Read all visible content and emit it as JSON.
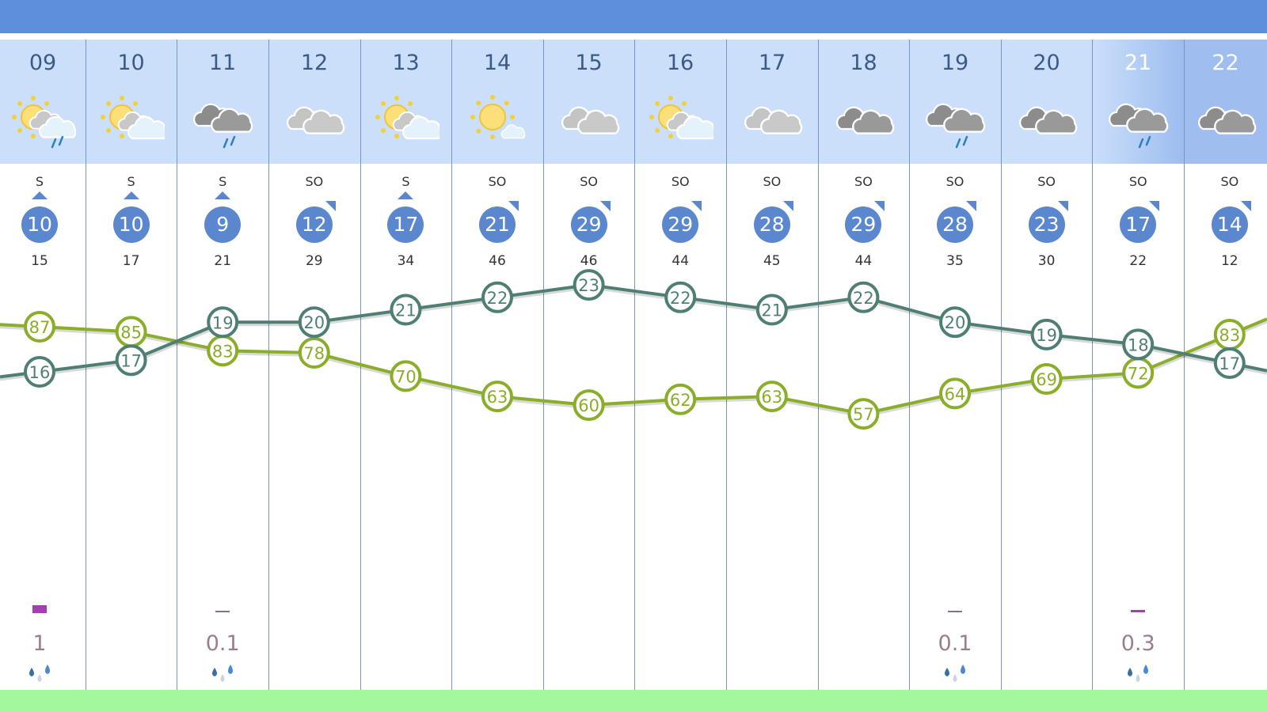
{
  "colors": {
    "topbar": "#5d8fdc",
    "header": "#cbdffb",
    "wind": "#5b87cf",
    "temperature": "#4f7f74",
    "humidity": "#8aad2a",
    "precip_bar": "#a33fb3",
    "bottom_band": "#a2f89a"
  },
  "days": [
    {
      "day": "09",
      "icon": "sun-cloud-rain",
      "wind_dir": "S",
      "wind_speed": "10",
      "gust": "15",
      "temp": 16,
      "humidity": 87,
      "precip": "1",
      "precip_bar": "block"
    },
    {
      "day": "10",
      "icon": "sun-cloud",
      "wind_dir": "S",
      "wind_speed": "10",
      "gust": "17",
      "temp": 17,
      "humidity": 85,
      "precip": "",
      "precip_bar": ""
    },
    {
      "day": "11",
      "icon": "cloud-rain",
      "wind_dir": "S",
      "wind_speed": "9",
      "gust": "21",
      "temp": 19,
      "humidity": 83,
      "precip": "0.1",
      "precip_bar": "line"
    },
    {
      "day": "12",
      "icon": "cloud",
      "wind_dir": "SO",
      "wind_speed": "12",
      "gust": "29",
      "temp": 20,
      "humidity": 78,
      "precip": "",
      "precip_bar": ""
    },
    {
      "day": "13",
      "icon": "sun-cloud",
      "wind_dir": "S",
      "wind_speed": "17",
      "gust": "34",
      "temp": 21,
      "humidity": 70,
      "precip": "",
      "precip_bar": ""
    },
    {
      "day": "14",
      "icon": "sun-small-cloud",
      "wind_dir": "SO",
      "wind_speed": "21",
      "gust": "46",
      "temp": 22,
      "humidity": 63,
      "precip": "",
      "precip_bar": ""
    },
    {
      "day": "15",
      "icon": "cloud",
      "wind_dir": "SO",
      "wind_speed": "29",
      "gust": "46",
      "temp": 23,
      "humidity": 60,
      "precip": "",
      "precip_bar": ""
    },
    {
      "day": "16",
      "icon": "sun-cloud",
      "wind_dir": "SO",
      "wind_speed": "29",
      "gust": "44",
      "temp": 22,
      "humidity": 62,
      "precip": "",
      "precip_bar": ""
    },
    {
      "day": "17",
      "icon": "cloud",
      "wind_dir": "SO",
      "wind_speed": "28",
      "gust": "45",
      "temp": 21,
      "humidity": 63,
      "precip": "",
      "precip_bar": ""
    },
    {
      "day": "18",
      "icon": "cloud-dark",
      "wind_dir": "SO",
      "wind_speed": "29",
      "gust": "44",
      "temp": 22,
      "humidity": 57,
      "precip": "",
      "precip_bar": ""
    },
    {
      "day": "19",
      "icon": "cloud-rain",
      "wind_dir": "SO",
      "wind_speed": "28",
      "gust": "35",
      "temp": 20,
      "humidity": 64,
      "precip": "0.1",
      "precip_bar": "line"
    },
    {
      "day": "20",
      "icon": "cloud-dark",
      "wind_dir": "SO",
      "wind_speed": "23",
      "gust": "30",
      "temp": 19,
      "humidity": 69,
      "precip": "",
      "precip_bar": ""
    },
    {
      "day": "21",
      "icon": "cloud-rain",
      "wind_dir": "SO",
      "wind_speed": "17",
      "gust": "22",
      "temp": 18,
      "humidity": 72,
      "precip": "0.3",
      "precip_bar": "line-strong"
    },
    {
      "day": "22",
      "icon": "cloud-dark",
      "wind_dir": "SO",
      "wind_speed": "14",
      "gust": "12",
      "temp": 17,
      "humidity": 83,
      "precip": "",
      "precip_bar": ""
    }
  ]
}
